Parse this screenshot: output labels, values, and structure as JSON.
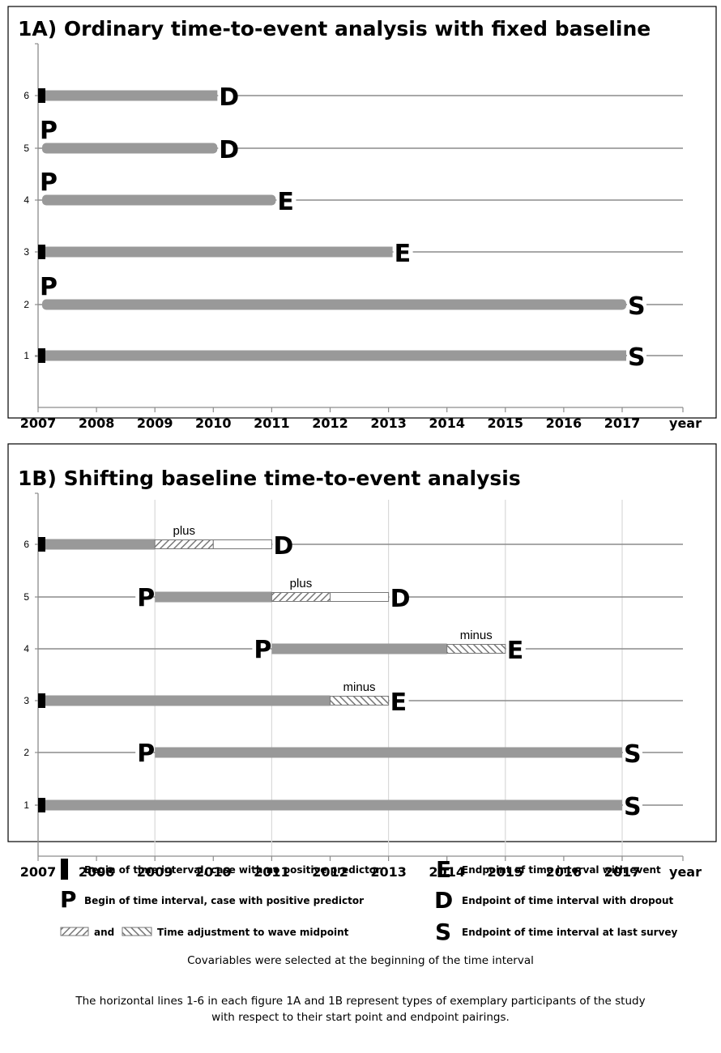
{
  "panel_a": {
    "title": "1A) Ordinary time-to-event analysis with fixed baseline",
    "xaxis": {
      "labels": [
        "2007",
        "2008",
        "2009",
        "2010",
        "2011",
        "2012",
        "2013",
        "2014",
        "2015",
        "2016",
        "2017"
      ],
      "unit": "year"
    },
    "rows": [
      {
        "label": "6",
        "start": 2007,
        "end": 2010,
        "start_marker": "bar",
        "end_marker": "D"
      },
      {
        "label": "5",
        "start": 2007,
        "end": 2010,
        "start_marker": "P",
        "end_marker": "D"
      },
      {
        "label": "4",
        "start": 2007,
        "end": 2011,
        "start_marker": "P",
        "end_marker": "E"
      },
      {
        "label": "3",
        "start": 2007,
        "end": 2013,
        "start_marker": "bar",
        "end_marker": "E"
      },
      {
        "label": "2",
        "start": 2007,
        "end": 2017,
        "start_marker": "P",
        "end_marker": "S"
      },
      {
        "label": "1",
        "start": 2007,
        "end": 2017,
        "start_marker": "bar",
        "end_marker": "S"
      }
    ]
  },
  "panel_b": {
    "title": "1B) Shifting baseline time-to-event analysis",
    "xaxis": {
      "labels": [
        "2007",
        "2008",
        "2009",
        "2010",
        "2011",
        "2012",
        "2013",
        "2014",
        "2015",
        "2016",
        "2017"
      ],
      "unit": "year"
    },
    "gridlines": [
      2009,
      2011,
      2013,
      2015,
      2017
    ],
    "rows": [
      {
        "label": "6",
        "start": 2007,
        "solid_end": 2009,
        "adj_start": 2009,
        "adj_end": 2010,
        "adj_label": "plus",
        "white_end": 2011,
        "end": 2011,
        "start_marker": "bar",
        "end_marker": "D"
      },
      {
        "label": "5",
        "start": 2009,
        "solid_end": 2011,
        "adj_start": 2011,
        "adj_end": 2012,
        "adj_label": "plus",
        "white_end": 2013,
        "end": 2013,
        "start_marker": "P",
        "end_marker": "D"
      },
      {
        "label": "4",
        "start": 2011,
        "solid_end": 2014,
        "adj_start": 2014,
        "adj_end": 2015,
        "adj_label": "minus",
        "end": 2015,
        "start_marker": "P",
        "end_marker": "E"
      },
      {
        "label": "3",
        "start": 2007,
        "solid_end": 2012,
        "adj_start": 2012,
        "adj_end": 2013,
        "adj_label": "minus",
        "end": 2013,
        "start_marker": "bar",
        "end_marker": "E"
      },
      {
        "label": "2",
        "start": 2009,
        "solid_end": 2017,
        "end": 2017,
        "start_marker": "P",
        "end_marker": "S"
      },
      {
        "label": "1",
        "start": 2007,
        "solid_end": 2017,
        "end": 2017,
        "start_marker": "bar",
        "end_marker": "S"
      }
    ]
  },
  "legend": {
    "no_predictor": "Begin of time interval, case with no positive predictor",
    "p_symbol": "P",
    "positive_predictor": "Begin of time interval, case with positive predictor",
    "and_word": "and",
    "time_adjustment": "Time adjustment to wave midpoint",
    "e_symbol": "E",
    "event": "Endpoint of time interval with event",
    "d_symbol": "D",
    "dropout": "Endpoint of time interval with dropout",
    "s_symbol": "S",
    "last_survey": "Endpoint of time interval at last survey"
  },
  "notes": {
    "covariables": "Covariables were selected at the beginning of the time interval",
    "line1": "The horizontal lines 1-6 in each figure 1A and 1B represent types of exemplary participants of the study",
    "line2": "with respect to their start point and endpoint pairings."
  },
  "colors": {
    "bar": "#999999",
    "axis": "#8c8c8c",
    "grid": "#d9d9d9",
    "frame": "#000000"
  }
}
